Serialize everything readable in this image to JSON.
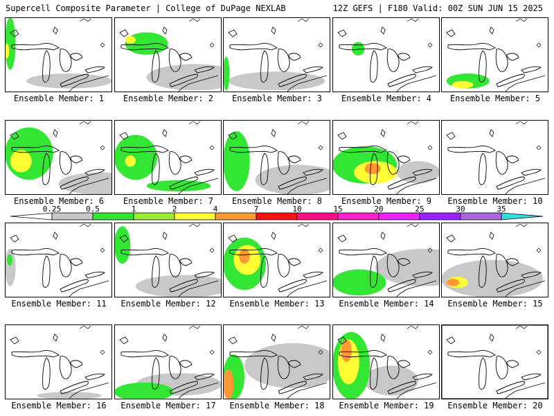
{
  "header": {
    "title_left": "Supercell Composite Parameter | College of DuPage NEXLAB",
    "title_right": "12Z GEFS | F180 Valid: 00Z SUN JUN 15 2025"
  },
  "colorbar": {
    "levels": [
      {
        "label": "0.25",
        "color": "#c8c8c8"
      },
      {
        "label": "0.5",
        "color": "#33e633"
      },
      {
        "label": "1",
        "color": "#99ee33"
      },
      {
        "label": "2",
        "color": "#ffff33"
      },
      {
        "label": "4",
        "color": "#ff9933"
      },
      {
        "label": "7",
        "color": "#ff1111"
      },
      {
        "label": "10",
        "color": "#ff1188"
      },
      {
        "label": "15",
        "color": "#ff22cc"
      },
      {
        "label": "20",
        "color": "#ee22ff"
      },
      {
        "label": "25",
        "color": "#9922ff"
      },
      {
        "label": "30",
        "color": "#aa66dd"
      },
      {
        "label": "35",
        "color": "#33dddd"
      }
    ]
  },
  "members": [
    {
      "label": "Ensemble Member: 1",
      "blobs": [
        [
          "g",
          0,
          0.35,
          0.1,
          0.7
        ],
        [
          "y",
          0,
          0.45,
          0.04,
          0.2
        ],
        [
          "gr",
          0.2,
          0.85,
          0.8,
          0.2
        ]
      ]
    },
    {
      "label": "Ensemble Member: 2",
      "blobs": [
        [
          "g",
          0.1,
          0.35,
          0.4,
          0.3
        ],
        [
          "gr",
          0.3,
          0.8,
          0.9,
          0.35
        ],
        [
          "y",
          0.1,
          0.3,
          0.1,
          0.1
        ]
      ]
    },
    {
      "label": "Ensemble Member: 3",
      "blobs": [
        [
          "g",
          0,
          0.75,
          0.06,
          0.45
        ],
        [
          "gr",
          0.05,
          0.85,
          0.9,
          0.25
        ]
      ]
    },
    {
      "label": "Ensemble Member: 4",
      "blobs": [
        [
          "g",
          0.18,
          0.42,
          0.12,
          0.18
        ]
      ]
    },
    {
      "label": "Ensemble Member: 5",
      "blobs": [
        [
          "g",
          0.05,
          0.85,
          0.4,
          0.2
        ],
        [
          "y",
          0.1,
          0.9,
          0.2,
          0.1
        ]
      ]
    },
    {
      "label": "Ensemble Member: 6",
      "blobs": [
        [
          "g",
          0,
          0.45,
          0.45,
          0.7
        ],
        [
          "y",
          0.05,
          0.55,
          0.2,
          0.3
        ],
        [
          "gr",
          0.5,
          0.85,
          0.8,
          0.3
        ]
      ]
    },
    {
      "label": "Ensemble Member: 7",
      "blobs": [
        [
          "g",
          0,
          0.5,
          0.4,
          0.6
        ],
        [
          "g",
          0.3,
          0.88,
          0.6,
          0.15
        ],
        [
          "y",
          0.1,
          0.55,
          0.1,
          0.15
        ]
      ]
    },
    {
      "label": "Ensemble Member: 8",
      "blobs": [
        [
          "g",
          0,
          0.55,
          0.25,
          0.8
        ],
        [
          "gr",
          0.3,
          0.8,
          0.8,
          0.4
        ]
      ]
    },
    {
      "label": "Ensemble Member: 9",
      "blobs": [
        [
          "g",
          0,
          0.6,
          0.6,
          0.5
        ],
        [
          "y",
          0.2,
          0.7,
          0.4,
          0.3
        ],
        [
          "o",
          0.3,
          0.65,
          0.15,
          0.15
        ],
        [
          "gr",
          0.6,
          0.7,
          0.4,
          0.3
        ]
      ]
    },
    {
      "label": "Ensemble Member: 10",
      "blobs": []
    },
    {
      "label": "Ensemble Member: 11",
      "blobs": [
        [
          "gr",
          0,
          0.6,
          0.1,
          0.5
        ],
        [
          "g",
          0.02,
          0.5,
          0.05,
          0.15
        ]
      ]
    },
    {
      "label": "Ensemble Member: 12",
      "blobs": [
        [
          "g",
          0,
          0.3,
          0.15,
          0.5
        ],
        [
          "gr",
          0.2,
          0.85,
          0.9,
          0.3
        ]
      ]
    },
    {
      "label": "Ensemble Member: 13",
      "blobs": [
        [
          "g",
          0,
          0.55,
          0.4,
          0.7
        ],
        [
          "y",
          0.1,
          0.5,
          0.25,
          0.4
        ],
        [
          "o",
          0.15,
          0.45,
          0.1,
          0.2
        ]
      ]
    },
    {
      "label": "Ensemble Member: 14",
      "blobs": [
        [
          "g",
          0,
          0.8,
          0.5,
          0.35
        ],
        [
          "gr",
          0.4,
          0.6,
          0.9,
          0.5
        ]
      ]
    },
    {
      "label": "Ensemble Member: 15",
      "blobs": [
        [
          "gr",
          0,
          0.75,
          0.95,
          0.5
        ],
        [
          "y",
          0.05,
          0.8,
          0.2,
          0.15
        ],
        [
          "o",
          0.05,
          0.8,
          0.12,
          0.1
        ]
      ]
    },
    {
      "label": "Ensemble Member: 16",
      "blobs": [
        [
          "gr",
          0.3,
          0.95,
          0.6,
          0.1
        ]
      ]
    },
    {
      "label": "Ensemble Member: 17",
      "blobs": [
        [
          "g",
          0,
          0.9,
          0.55,
          0.25
        ],
        [
          "gr",
          0.2,
          0.8,
          0.8,
          0.3
        ]
      ]
    },
    {
      "label": "Ensemble Member: 18",
      "blobs": [
        [
          "g",
          0,
          0.7,
          0.2,
          0.6
        ],
        [
          "o",
          0,
          0.8,
          0.1,
          0.4
        ],
        [
          "gr",
          0.2,
          0.55,
          0.9,
          0.6
        ]
      ]
    },
    {
      "label": "Ensemble Member: 19",
      "blobs": [
        [
          "g",
          0,
          0.55,
          0.35,
          0.9
        ],
        [
          "y",
          0.05,
          0.5,
          0.2,
          0.6
        ],
        [
          "o",
          0.08,
          0.35,
          0.1,
          0.3
        ],
        [
          "gr",
          0.3,
          0.75,
          0.5,
          0.4
        ]
      ]
    },
    {
      "label": "Ensemble Member: 20",
      "blobs": []
    }
  ]
}
